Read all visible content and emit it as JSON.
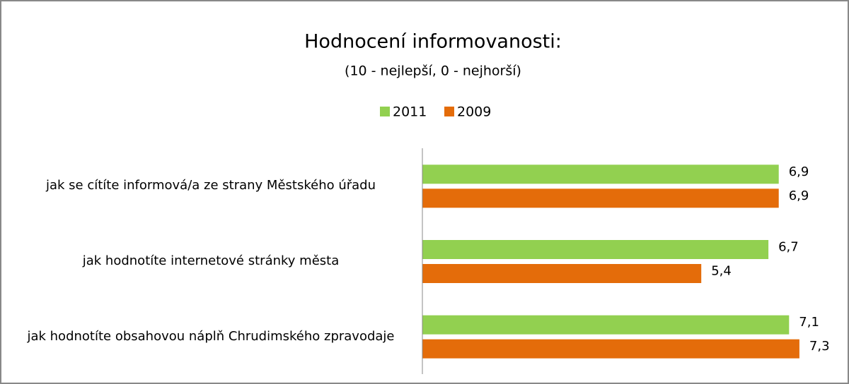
{
  "chart_data": {
    "type": "bar",
    "orientation": "horizontal",
    "title": "Hodnocení informovanosti:",
    "subtitle": "(10 -  nejlepší, 0 - nejhorší)",
    "categories": [
      "jak se cítíte informová/a ze strany Městského úřadu",
      "jak hodnotíte internetové stránky města",
      "jak hodnotíte obsahovou náplň Chrudimského zpravodaje"
    ],
    "series": [
      {
        "name": "2011",
        "color": "#92d050",
        "values": [
          6.9,
          6.7,
          7.1
        ],
        "value_labels": [
          "6,9",
          "6,7",
          "7,1"
        ]
      },
      {
        "name": "2009",
        "color": "#e46c0a",
        "values": [
          6.9,
          5.4,
          7.3
        ],
        "value_labels": [
          "6,9",
          "5,4",
          "7,3"
        ]
      }
    ],
    "xlim": [
      0,
      8
    ],
    "legend": "top"
  }
}
